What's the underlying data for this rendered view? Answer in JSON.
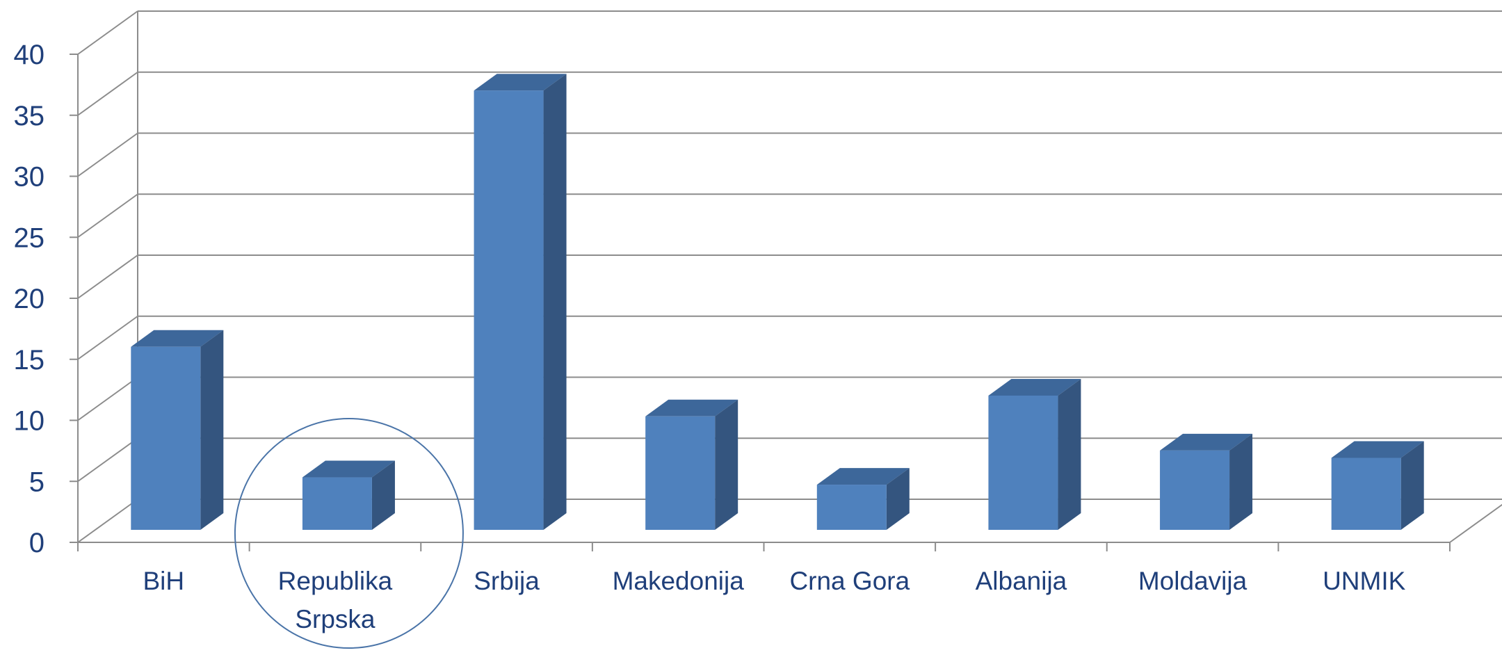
{
  "chart_data": {
    "type": "bar",
    "title": "",
    "xlabel": "",
    "ylabel": "",
    "ylim": [
      0,
      40
    ],
    "yticks": [
      "0",
      "5",
      "10",
      "15",
      "20",
      "25",
      "30",
      "35",
      "40"
    ],
    "categories": [
      [
        "BiH"
      ],
      [
        "Republika",
        "Srpska"
      ],
      [
        "Srbija"
      ],
      [
        "Makedonija"
      ],
      [
        "Crna Gora"
      ],
      [
        "Albanija"
      ],
      [
        "Moldavija"
      ],
      [
        "UNMIK"
      ]
    ],
    "values": [
      15,
      4.3,
      36,
      9.3,
      3.7,
      11,
      6.5,
      5.9
    ],
    "three_d": true,
    "grid": true,
    "legend": "none",
    "highlighted_category": "Republika Srpska",
    "colors": {
      "bar_front": "#4F81BD",
      "bar_side": "#34557F",
      "bar_top": "#3D679A",
      "grid": "#8C8C8C",
      "text": "#1F3F7A",
      "highlight_circle": "#4A74A8"
    }
  }
}
